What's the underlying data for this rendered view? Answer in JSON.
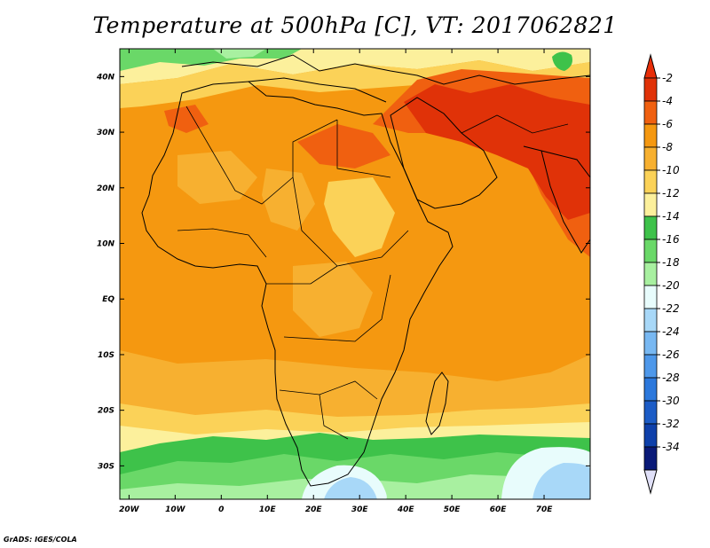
{
  "title": "Temperature at 500hPa [C], VT: 2017062821",
  "credit": "GrADS: IGES/COLA",
  "map": {
    "lon_range": [
      -22,
      80
    ],
    "lat_range": [
      -36,
      45
    ],
    "x_ticks": [
      {
        "lon": -20,
        "label": "20W"
      },
      {
        "lon": -10,
        "label": "10W"
      },
      {
        "lon": 0,
        "label": "0"
      },
      {
        "lon": 10,
        "label": "10E"
      },
      {
        "lon": 20,
        "label": "20E"
      },
      {
        "lon": 30,
        "label": "30E"
      },
      {
        "lon": 40,
        "label": "40E"
      },
      {
        "lon": 50,
        "label": "50E"
      },
      {
        "lon": 60,
        "label": "60E"
      },
      {
        "lon": 70,
        "label": "70E"
      }
    ],
    "y_ticks": [
      {
        "lat": 40,
        "label": "40N"
      },
      {
        "lat": 30,
        "label": "30N"
      },
      {
        "lat": 20,
        "label": "20N"
      },
      {
        "lat": 10,
        "label": "10N"
      },
      {
        "lat": 0,
        "label": "EQ"
      },
      {
        "lat": -10,
        "label": "10S"
      },
      {
        "lat": -20,
        "label": "20S"
      },
      {
        "lat": -30,
        "label": "30S"
      }
    ]
  },
  "colorbar": {
    "levels": [
      "-2",
      "-4",
      "-6",
      "-8",
      "-10",
      "-12",
      "-14",
      "-16",
      "-18",
      "-20",
      "-22",
      "-24",
      "-26",
      "-28",
      "-30",
      "-32",
      "-34"
    ],
    "colors": [
      "#e03208",
      "#f06010",
      "#f59810",
      "#f7b030",
      "#fbd258",
      "#fcf09c",
      "#3ec24a",
      "#6ad868",
      "#a8f0a0",
      "#e8fcfc",
      "#a8d8f8",
      "#78b8f2",
      "#4e98ea",
      "#2c78dc",
      "#1c5cc6",
      "#0e40aa",
      "#0a1a78"
    ],
    "top_color": "#e82e08",
    "bottom_color": "#e0e0f8"
  },
  "colors": {
    "background_orange": "#f59810",
    "dark_orange": "#f06010",
    "red_orange": "#e03208",
    "light_orange": "#f7b030",
    "yellow": "#fbd258",
    "pale_yellow": "#fcf09c",
    "green": "#3ec24a",
    "light_green": "#6ad868",
    "pale_green": "#a8f0a0",
    "pale_cyan": "#e8fcfc",
    "light_blue": "#a8d8f8"
  }
}
